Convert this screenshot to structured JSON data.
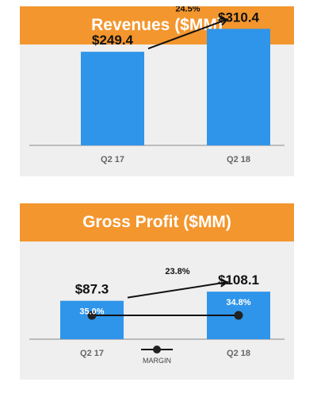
{
  "colors": {
    "header": "#f3962e",
    "bar": "#2f95ea",
    "panel": "#efefef",
    "marker": "#222222"
  },
  "chart_data": [
    {
      "type": "bar",
      "title": "Revenues ($MM)",
      "categories": [
        "Q2 17",
        "Q2 18"
      ],
      "values": [
        249.4,
        310.4
      ],
      "value_labels": [
        "$249.4",
        "$310.4"
      ],
      "growth_label": "24.5%",
      "ylim": [
        0,
        400
      ],
      "grid": false
    },
    {
      "type": "bar",
      "title": "Gross Profit ($MM)",
      "categories": [
        "Q2 17",
        "Q2 18"
      ],
      "values": [
        87.3,
        108.1
      ],
      "value_labels": [
        "$87.3",
        "$108.1"
      ],
      "growth_label": "23.8%",
      "ylim": [
        0,
        140
      ],
      "grid": false,
      "margin_series": {
        "name": "MARGIN",
        "values": [
          35.0,
          34.8
        ],
        "labels": [
          "35.0%",
          "34.8%"
        ]
      }
    }
  ]
}
